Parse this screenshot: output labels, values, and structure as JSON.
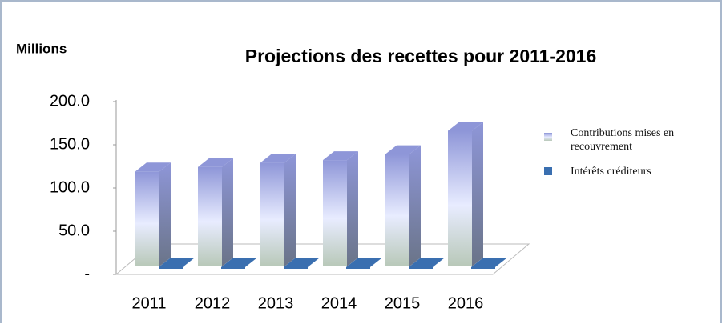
{
  "chart_data": {
    "type": "bar3d",
    "title": "Projections des recettes pour 2011-2016",
    "y_label": "Millions",
    "categories": [
      "2011",
      "2012",
      "2013",
      "2014",
      "2015",
      "2016"
    ],
    "series": [
      {
        "name": "Contributions mises en recouvrement",
        "color": "#8e96d8",
        "values": [
          110,
          115,
          120,
          123,
          130,
          157
        ]
      },
      {
        "name": "Intérêts créditeurs",
        "color": "#3a6fb0",
        "values": [
          1,
          1,
          1,
          1,
          1,
          1
        ]
      }
    ],
    "ylim": [
      0,
      200
    ],
    "yticks": [
      {
        "value": 0,
        "label": "-"
      },
      {
        "value": 50,
        "label": "50.0"
      },
      {
        "value": 100,
        "label": "100.0"
      },
      {
        "value": 150,
        "label": "150.0"
      },
      {
        "value": 200,
        "label": "200.0"
      }
    ],
    "legend": "right"
  }
}
